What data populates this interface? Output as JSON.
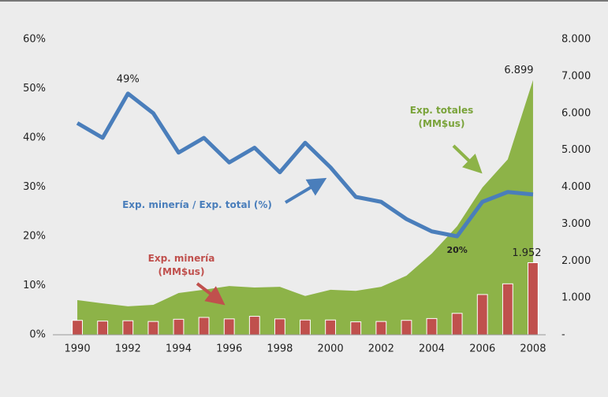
{
  "chart_data": {
    "type": "combo",
    "categories": [
      "1990",
      null,
      "1992",
      null,
      "1994",
      null,
      "1996",
      null,
      "1998",
      null,
      "2000",
      null,
      "2002",
      null,
      "2004",
      null,
      "2006",
      null,
      "2008"
    ],
    "ylim": [
      0,
      60
    ],
    "yticks": [
      {
        "value": 0,
        "label": "0%"
      },
      {
        "value": 10,
        "label": "10%"
      },
      {
        "value": 20,
        "label": "20%"
      },
      {
        "value": 30,
        "label": "30%"
      },
      {
        "value": 40,
        "label": "40%"
      },
      {
        "value": 50,
        "label": "50%"
      },
      {
        "value": 60,
        "label": "60%"
      }
    ],
    "y2lim": [
      0,
      8000
    ],
    "y2ticks": [
      {
        "value": 0,
        "label": "-"
      },
      {
        "value": 1000,
        "label": "1.000"
      },
      {
        "value": 2000,
        "label": "2.000"
      },
      {
        "value": 3000,
        "label": "3.000"
      },
      {
        "value": 4000,
        "label": "4.000"
      },
      {
        "value": 5000,
        "label": "5.000"
      },
      {
        "value": 6000,
        "label": "6.000"
      },
      {
        "value": 7000,
        "label": "7.000"
      },
      {
        "value": 8000,
        "label": "8.000"
      }
    ],
    "series": [
      {
        "name": "Exp. totales (MM$us)",
        "type": "area",
        "axis": "y2",
        "color": "#8db348",
        "values": [
          940,
          850,
          770,
          810,
          1130,
          1220,
          1320,
          1280,
          1300,
          1050,
          1220,
          1190,
          1300,
          1600,
          2200,
          2940,
          3990,
          4750,
          6899
        ],
        "value_labels": [
          null,
          null,
          null,
          null,
          null,
          null,
          null,
          null,
          null,
          null,
          null,
          null,
          null,
          null,
          null,
          null,
          null,
          null,
          "6.899"
        ]
      },
      {
        "name": "Exp. minería (MM$us)",
        "type": "bar",
        "axis": "y2",
        "color": "#c0504d",
        "values": [
          390,
          370,
          380,
          360,
          420,
          470,
          430,
          500,
          430,
          400,
          400,
          350,
          360,
          390,
          440,
          580,
          1090,
          1380,
          1952
        ],
        "value_labels": [
          null,
          null,
          null,
          null,
          null,
          null,
          null,
          null,
          null,
          null,
          null,
          null,
          null,
          null,
          null,
          null,
          null,
          null,
          "1.952"
        ]
      },
      {
        "name": "Exp. minería / Exp. total (%)",
        "type": "line",
        "color": "#4a7ebb",
        "values": [
          43,
          40,
          49,
          45,
          37,
          40,
          35,
          38,
          33,
          39,
          34,
          28,
          27,
          23.5,
          21,
          20,
          27,
          29,
          28.5
        ],
        "value_labels": [
          null,
          null,
          "49%",
          null,
          null,
          null,
          null,
          null,
          null,
          null,
          null,
          null,
          null,
          null,
          null,
          "20%",
          null,
          null,
          null
        ]
      }
    ]
  }
}
